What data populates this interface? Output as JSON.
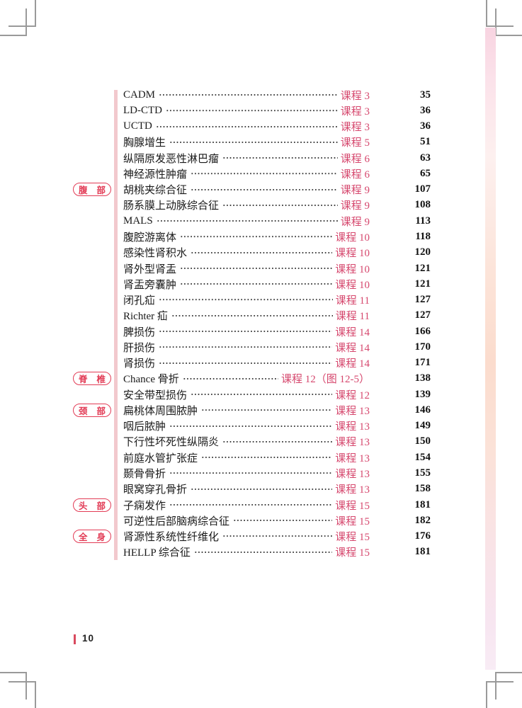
{
  "toc": {
    "entries": [
      {
        "section": "",
        "title": "CADM",
        "course": "课程 3",
        "page": "35"
      },
      {
        "section": "",
        "title": "LD-CTD",
        "course": "课程 3",
        "page": "36"
      },
      {
        "section": "",
        "title": "UCTD",
        "course": "课程 3",
        "page": "36"
      },
      {
        "section": "",
        "title": "胸腺增生",
        "course": "课程 5",
        "page": "51"
      },
      {
        "section": "",
        "title": "纵隔原发恶性淋巴瘤",
        "course": "课程 6",
        "page": "63"
      },
      {
        "section": "",
        "title": "神经源性肿瘤",
        "course": "课程 6",
        "page": "65"
      },
      {
        "section": "腹部",
        "title": "胡桃夹综合征",
        "course": "课程 9",
        "page": "107"
      },
      {
        "section": "",
        "title": "肠系膜上动脉综合征",
        "course": "课程 9",
        "page": "108"
      },
      {
        "section": "",
        "title": "MALS",
        "course": "课程 9",
        "page": "113"
      },
      {
        "section": "",
        "title": "腹腔游离体",
        "course": "课程 10",
        "page": "118"
      },
      {
        "section": "",
        "title": "感染性肾积水",
        "course": "课程 10",
        "page": "120"
      },
      {
        "section": "",
        "title": "肾外型肾盂",
        "course": "课程 10",
        "page": "121"
      },
      {
        "section": "",
        "title": "肾盂旁囊肿",
        "course": "课程 10",
        "page": "121"
      },
      {
        "section": "",
        "title": "闭孔疝",
        "course": "课程 11",
        "page": "127"
      },
      {
        "section": "",
        "title": "Richter 疝",
        "course": "课程 11",
        "page": "127"
      },
      {
        "section": "",
        "title": "脾损伤",
        "course": "课程 14",
        "page": "166"
      },
      {
        "section": "",
        "title": "肝损伤",
        "course": "课程 14",
        "page": "170"
      },
      {
        "section": "",
        "title": "肾损伤",
        "course": "课程 14",
        "page": "171"
      },
      {
        "section": "脊椎",
        "title": "Chance 骨折",
        "course": "课程 12（图 12-5）",
        "page": "138"
      },
      {
        "section": "",
        "title": "安全带型损伤",
        "course": "课程 12",
        "page": "139"
      },
      {
        "section": "颈部",
        "title": "扁桃体周围脓肿",
        "course": "课程 13",
        "page": "146"
      },
      {
        "section": "",
        "title": "咽后脓肿",
        "course": "课程 13",
        "page": "149"
      },
      {
        "section": "",
        "title": "下行性坏死性纵隔炎",
        "course": "课程 13",
        "page": "150"
      },
      {
        "section": "",
        "title": "前庭水管扩张症",
        "course": "课程 13",
        "page": "154"
      },
      {
        "section": "",
        "title": "颞骨骨折",
        "course": "课程 13",
        "page": "155"
      },
      {
        "section": "",
        "title": "眼窝穿孔骨折",
        "course": "课程 13",
        "page": "158"
      },
      {
        "section": "头部",
        "title": "子痫发作",
        "course": "课程 15",
        "page": "181"
      },
      {
        "section": "",
        "title": "可逆性后部脑病综合征",
        "course": "课程 15",
        "page": "182"
      },
      {
        "section": "全身",
        "title": "肾源性系统性纤维化",
        "course": "课程 15",
        "page": "176"
      },
      {
        "section": "",
        "title": "HELLP 综合征",
        "course": "课程 15",
        "page": "181"
      }
    ]
  },
  "footer": {
    "page_number": "10"
  },
  "colors": {
    "course_red": "#d6486e",
    "section_label_red": "#e23b55",
    "rule_pink": "#f2c9cd",
    "folio_bar_red": "#d94a5e",
    "crop_mark_gray": "#9a9a9a"
  }
}
